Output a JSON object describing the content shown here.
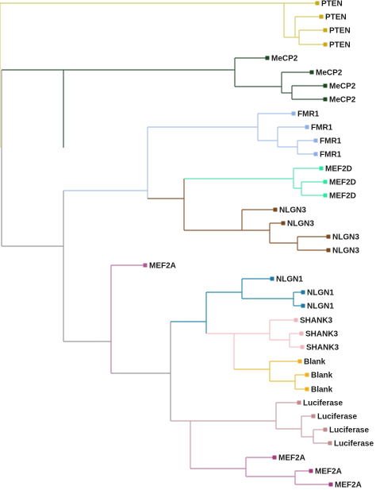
{
  "leaves": [
    {
      "label": "PTEN",
      "color": "#c9a915"
    },
    {
      "label": "PTEN",
      "color": "#c9a915"
    },
    {
      "label": "PTEN",
      "color": "#c9a915"
    },
    {
      "label": "PTEN",
      "color": "#c9a915"
    },
    {
      "label": "MeCP2",
      "color": "#1f4a25"
    },
    {
      "label": "MeCP2",
      "color": "#1f4a25"
    },
    {
      "label": "MeCP2",
      "color": "#1f4a25"
    },
    {
      "label": "MeCP2",
      "color": "#1f4a25"
    },
    {
      "label": "FMR1",
      "color": "#8fb0e6"
    },
    {
      "label": "FMR1",
      "color": "#8fb0e6"
    },
    {
      "label": "FMR1",
      "color": "#8fb0e6"
    },
    {
      "label": "FMR1",
      "color": "#8fb0e6"
    },
    {
      "label": "MEF2D",
      "color": "#2ee8a0"
    },
    {
      "label": "MEF2D",
      "color": "#2ee8a0"
    },
    {
      "label": "MEF2D",
      "color": "#2ee8a0"
    },
    {
      "label": "NLGN3",
      "color": "#7a4a25"
    },
    {
      "label": "NLGN3",
      "color": "#7a4a25"
    },
    {
      "label": "NLGN3",
      "color": "#7a4a25"
    },
    {
      "label": "NLGN3",
      "color": "#7a4a25"
    },
    {
      "label": "MEF2A",
      "color": "#b05a9a"
    },
    {
      "label": "NLGN1",
      "color": "#1e7aa0"
    },
    {
      "label": "NLGN1",
      "color": "#1e7aa0"
    },
    {
      "label": "NLGN1",
      "color": "#1e7aa0"
    },
    {
      "label": "SHANK3",
      "color": "#f0b4bc"
    },
    {
      "label": "SHANK3",
      "color": "#f0b4bc"
    },
    {
      "label": "SHANK3",
      "color": "#f0b4bc"
    },
    {
      "label": "Blank",
      "color": "#f0b020"
    },
    {
      "label": "Blank",
      "color": "#f0b020"
    },
    {
      "label": "Blank",
      "color": "#f0b020"
    },
    {
      "label": "Luciferase",
      "color": "#c08a8e"
    },
    {
      "label": "Luciferase",
      "color": "#c08a8e"
    },
    {
      "label": "Luciferase",
      "color": "#c08a8e"
    },
    {
      "label": "Luciferase",
      "color": "#c08a8e"
    },
    {
      "label": "MEF2A",
      "color": "#a0407e"
    },
    {
      "label": "MEF2A",
      "color": "#a0407e"
    },
    {
      "label": "MEF2A",
      "color": "#a0407e"
    }
  ],
  "colors": {
    "PTEN": "#d8cc6a",
    "MeCP2": "#3a5a40",
    "FMR1": "#a9c2ea",
    "MEF2D": "#5ae6b4",
    "NLGN3": "#8a5a35",
    "MEF2A_single": "#c27aa8",
    "NLGN1": "#2f8aae",
    "SHANK3": "#f2c2c6",
    "Blank": "#e8c04a",
    "Luciferase": "#c9a2a6",
    "MEF2A_clade": "#c480a8",
    "backbone": "#9a9a9a"
  }
}
